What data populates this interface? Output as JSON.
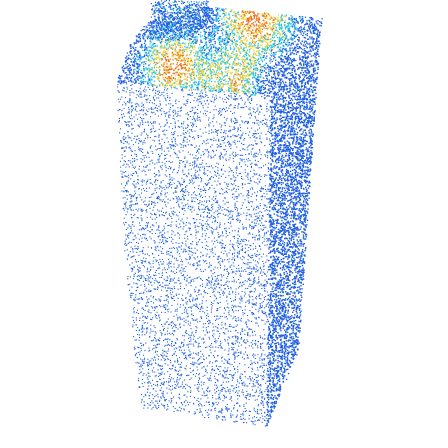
{
  "scene": {
    "object": "point-cloud",
    "background_color": "#ffffff",
    "colormap": {
      "low": "#1f5fe0",
      "mid_low": "#22c8e6",
      "mid": "#f2cf2a",
      "high": "#e8701c"
    },
    "regions": [
      {
        "name": "front-face",
        "height_level": "low"
      },
      {
        "name": "right-side-face",
        "height_level": "low"
      },
      {
        "name": "top-surface",
        "height_level": "high"
      },
      {
        "name": "top-rim",
        "height_level": "mixed"
      }
    ]
  }
}
